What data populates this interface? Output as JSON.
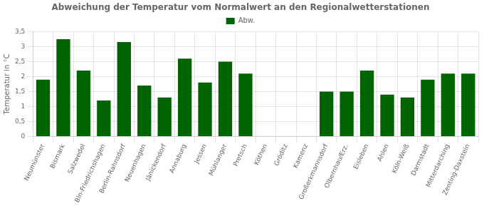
{
  "chart_data": {
    "type": "bar",
    "title": "Abweichung der Temperatur vom Normalwert an den Regionalwetterstationen",
    "ylabel": "Temperatur in °C",
    "categories": [
      "Neumünster",
      "Bismark",
      "Salzwedel",
      "Bln-Friedrichshagen",
      "Berlin-Rahnsdorf",
      "Neuenhagen",
      "Jänickendorf",
      "Annaburg",
      "Jessen",
      "Mühlanger",
      "Pretsch",
      "Köthen",
      "Gröditz",
      "Kamenz",
      "Großerkmannsdorf",
      "Olbernhau/Erz.",
      "Eisleben",
      "Ahlen",
      "Köln-Weiß",
      "Darmstadt",
      "Mitterdarching",
      "Zenting-Daxstein"
    ],
    "series": [
      {
        "name": "Abw.",
        "color": "#006400",
        "values": [
          1.9,
          3.25,
          2.2,
          1.2,
          3.15,
          1.7,
          1.3,
          2.6,
          1.8,
          2.5,
          2.1,
          0.0,
          0.0,
          0.0,
          1.5,
          1.5,
          2.2,
          1.4,
          1.3,
          1.9,
          2.1,
          2.1
        ]
      }
    ],
    "ylim": [
      0,
      3.5
    ],
    "yticks": [
      0,
      {
        "value": 0.5,
        "label": "0,5"
      },
      1,
      {
        "value": 1.5,
        "label": "1,5"
      },
      2,
      {
        "value": 2.5,
        "label": "2,5"
      },
      3,
      {
        "value": 3.5,
        "label": "3,5"
      }
    ],
    "grid": true,
    "legend": "top"
  }
}
